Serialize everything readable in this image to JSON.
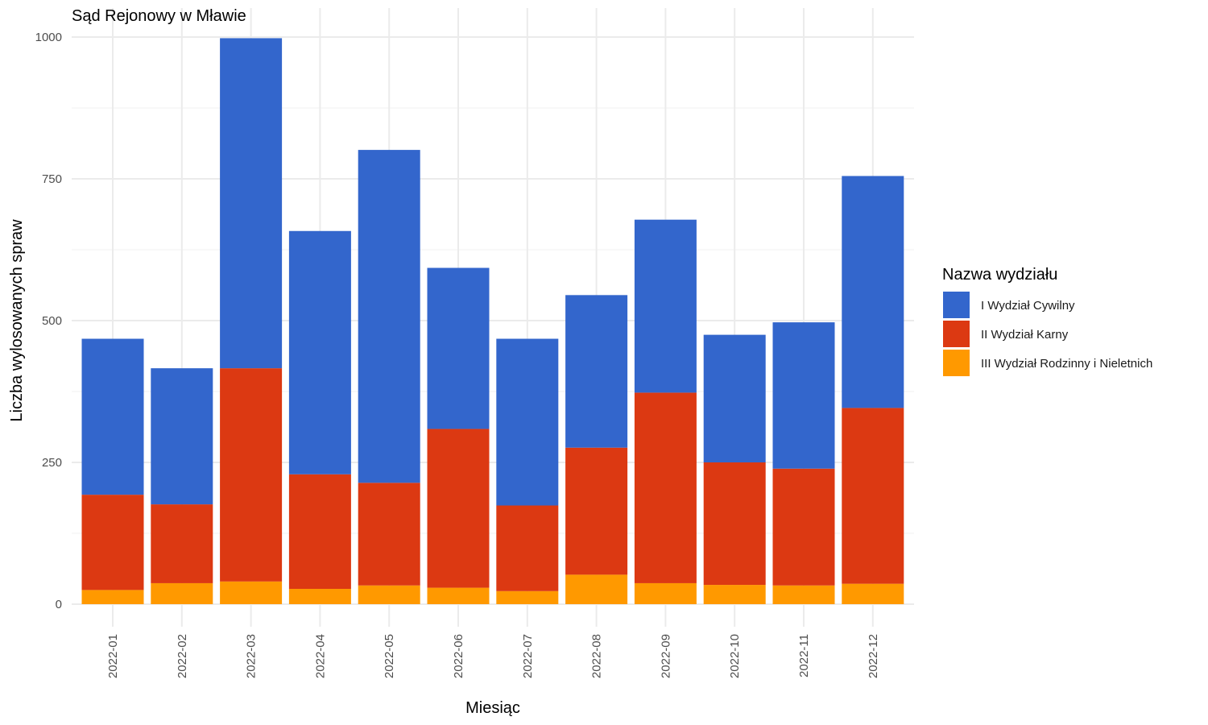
{
  "chart_data": {
    "type": "bar",
    "stacked": true,
    "title": "Sąd Rejonowy w Mławie",
    "xlabel": "Miesiąc",
    "ylabel": "Liczba wylosowanych spraw",
    "ylim": [
      0,
      1000
    ],
    "yticks": [
      0,
      250,
      500,
      750,
      1000
    ],
    "ytick_labels": [
      "0",
      "250",
      "500",
      "750",
      "1000"
    ],
    "grid": true,
    "legend_position": "right",
    "legend_title": "Nazwa wydziału",
    "categories": [
      "2022-01",
      "2022-02",
      "2022-03",
      "2022-04",
      "2022-05",
      "2022-06",
      "2022-07",
      "2022-08",
      "2022-09",
      "2022-10",
      "2022-11",
      "2022-12"
    ],
    "series": [
      {
        "name": "III Wydział Rodzinny i Nieletnich",
        "color": "#FF9900",
        "values": [
          25,
          37,
          40,
          27,
          33,
          29,
          23,
          52,
          37,
          34,
          33,
          36
        ]
      },
      {
        "name": "II Wydział Karny",
        "color": "#DC3912",
        "values": [
          168,
          139,
          376,
          202,
          181,
          280,
          151,
          224,
          336,
          216,
          206,
          310
        ]
      },
      {
        "name": "I Wydział Cywilny",
        "color": "#3366CC",
        "values": [
          275,
          240,
          582,
          429,
          587,
          284,
          294,
          269,
          305,
          225,
          258,
          409
        ]
      }
    ],
    "legend_order": [
      "I Wydział Cywilny",
      "II Wydział Karny",
      "III Wydział Rodzinny i Nieletnich"
    ]
  }
}
